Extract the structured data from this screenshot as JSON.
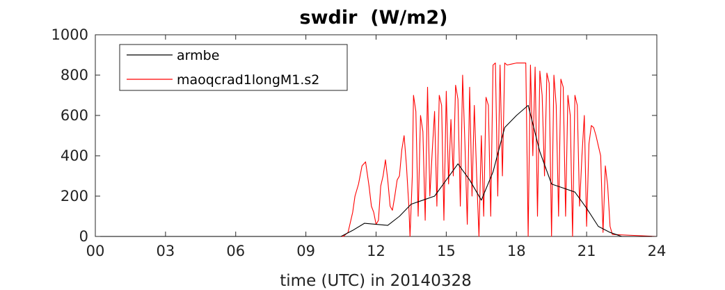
{
  "chart_data": {
    "type": "line",
    "title": "swdir  (W/m2)",
    "xlabel": "time (UTC) in 20140328",
    "ylabel": "",
    "xlim": [
      0,
      24
    ],
    "ylim": [
      0,
      1000
    ],
    "x_ticks": [
      0,
      3,
      6,
      9,
      12,
      15,
      18,
      21,
      24
    ],
    "x_tick_labels": [
      "00",
      "03",
      "06",
      "09",
      "12",
      "15",
      "18",
      "21",
      "24"
    ],
    "y_ticks": [
      0,
      200,
      400,
      600,
      800,
      1000
    ],
    "y_tick_labels": [
      "0",
      "200",
      "400",
      "600",
      "800",
      "1000"
    ],
    "grid": false,
    "legend_position": "top-left",
    "series": [
      {
        "name": "armbe",
        "color": "#000000",
        "x": [
          0,
          10.5,
          11.0,
          11.5,
          12.0,
          12.5,
          13.0,
          13.5,
          14.0,
          14.5,
          15.0,
          15.5,
          16.0,
          16.5,
          17.0,
          17.5,
          18.0,
          18.5,
          19.0,
          19.5,
          20.0,
          20.5,
          21.0,
          21.5,
          22.0,
          22.5,
          24
        ],
        "y": [
          0,
          0,
          30,
          65,
          60,
          55,
          100,
          160,
          180,
          200,
          280,
          360,
          280,
          180,
          320,
          540,
          600,
          650,
          420,
          260,
          240,
          220,
          140,
          50,
          20,
          0,
          0
        ]
      },
      {
        "name": "maoqcrad1longM1.s2",
        "color": "#ff0000",
        "x": [
          0,
          10.6,
          10.8,
          11.0,
          11.1,
          11.25,
          11.4,
          11.55,
          11.7,
          11.8,
          11.9,
          12.0,
          12.1,
          12.2,
          12.3,
          12.4,
          12.5,
          12.6,
          12.7,
          12.8,
          12.9,
          13.0,
          13.1,
          13.2,
          13.3,
          13.4,
          13.45,
          13.55,
          13.6,
          13.7,
          13.8,
          13.9,
          14.0,
          14.1,
          14.2,
          14.3,
          14.4,
          14.5,
          14.6,
          14.7,
          14.8,
          14.9,
          15.0,
          15.1,
          15.2,
          15.3,
          15.4,
          15.5,
          15.6,
          15.7,
          15.8,
          15.9,
          16.0,
          16.1,
          16.2,
          16.3,
          16.4,
          16.5,
          16.6,
          16.7,
          16.8,
          16.9,
          17.0,
          17.1,
          17.2,
          17.3,
          17.4,
          17.5,
          17.6,
          17.8,
          18.0,
          18.2,
          18.4,
          18.5,
          18.6,
          18.7,
          18.8,
          18.9,
          19.0,
          19.1,
          19.2,
          19.3,
          19.4,
          19.5,
          19.6,
          19.7,
          19.8,
          19.9,
          20.0,
          20.1,
          20.2,
          20.3,
          20.4,
          20.5,
          20.6,
          20.7,
          20.8,
          20.9,
          21.0,
          21.1,
          21.2,
          21.3,
          21.4,
          21.5,
          21.6,
          21.7,
          21.8,
          21.9,
          22.0,
          22.1,
          24
        ],
        "y": [
          0,
          0,
          20,
          120,
          200,
          260,
          350,
          370,
          250,
          150,
          120,
          60,
          80,
          250,
          300,
          380,
          280,
          150,
          130,
          200,
          280,
          300,
          430,
          500,
          350,
          150,
          0,
          300,
          700,
          620,
          100,
          600,
          520,
          80,
          740,
          200,
          420,
          620,
          150,
          700,
          650,
          80,
          720,
          260,
          580,
          300,
          750,
          680,
          150,
          800,
          450,
          60,
          740,
          200,
          650,
          300,
          0,
          500,
          100,
          690,
          650,
          100,
          850,
          860,
          200,
          850,
          300,
          860,
          850,
          855,
          860,
          860,
          860,
          0,
          850,
          400,
          840,
          100,
          820,
          700,
          300,
          810,
          760,
          0,
          800,
          650,
          100,
          780,
          740,
          100,
          700,
          600,
          0,
          700,
          650,
          150,
          400,
          600,
          50,
          460,
          550,
          540,
          500,
          450,
          400,
          20,
          350,
          250,
          50,
          10,
          0
        ]
      }
    ]
  }
}
